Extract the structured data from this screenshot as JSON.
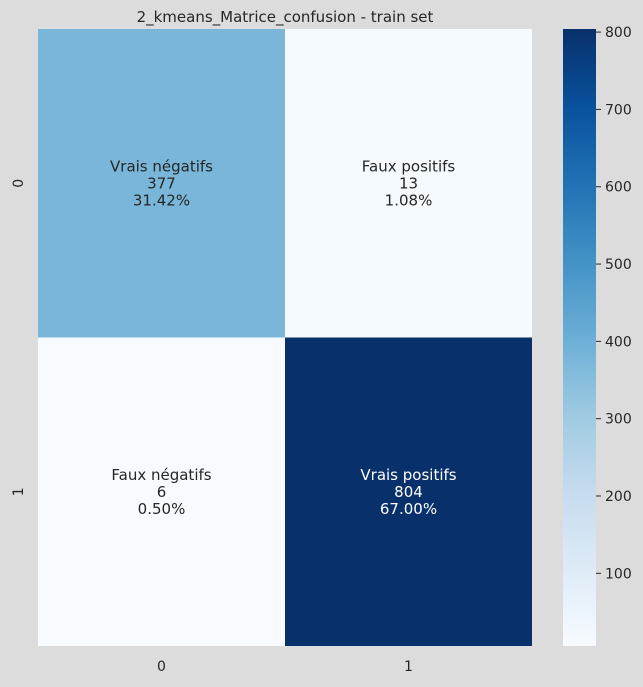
{
  "chart_data": {
    "type": "heatmap",
    "title": "2_kmeans_Matrice_confusion - train set",
    "x_tick_labels": [
      "0",
      "1"
    ],
    "y_tick_labels": [
      "0",
      "1"
    ],
    "cells": [
      [
        {
          "label": "Vrais négatifs",
          "count": "377",
          "percent": "31.42%",
          "value": 377
        },
        {
          "label": "Faux positifs",
          "count": "13",
          "percent": "1.08%",
          "value": 13
        }
      ],
      [
        {
          "label": "Faux négatifs",
          "count": "6",
          "percent": "0.50%",
          "value": 6
        },
        {
          "label": "Vrais positifs",
          "count": "804",
          "percent": "67.00%",
          "value": 804
        }
      ]
    ],
    "colorbar": {
      "min": 6,
      "max": 804,
      "ticks": [
        100,
        200,
        300,
        400,
        500,
        600,
        700,
        800
      ],
      "tick_labels": [
        "100",
        "200",
        "300",
        "400",
        "500",
        "600",
        "700",
        "800"
      ],
      "colormap": "Blues"
    },
    "colors": {
      "background": "#dcdcdc",
      "text_dark": "#262626",
      "text_light": "#ffffff"
    }
  }
}
